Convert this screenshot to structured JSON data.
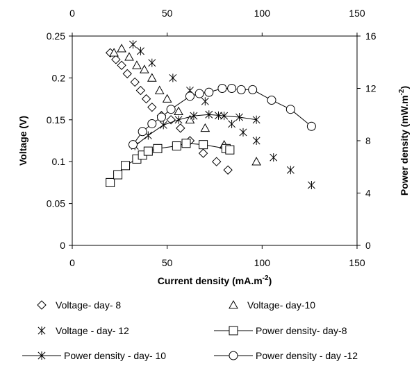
{
  "chart_data": {
    "type": "scatter",
    "xlabel": "Current density (mA.m-2)",
    "xlabel_parts": {
      "main": "Current density (mA.m",
      "sup": "-2",
      "close": ")"
    },
    "ylabel": "Voltage (V)",
    "y2label": "Power density (mW.m-2)",
    "y2label_parts": {
      "main": "Power density (mW.m",
      "sup": "-2",
      "close": ")"
    },
    "xlim": [
      0,
      150
    ],
    "ylim": [
      0,
      0.25
    ],
    "y2lim": [
      0,
      16
    ],
    "x_ticks": [
      "0",
      "50",
      "100",
      "150"
    ],
    "x_top_ticks": [
      "0",
      "50",
      "100",
      "150"
    ],
    "y_ticks": [
      "0",
      "0.05",
      "0.1",
      "0.15",
      "0.2",
      "0.25"
    ],
    "y2_ticks": [
      "0",
      "4",
      "8",
      "12",
      "16"
    ],
    "grid": false,
    "legend_position": "bottom",
    "series": [
      {
        "name": "Voltage- day- 8",
        "axis": "left",
        "marker": "diamond",
        "line": false,
        "x": [
          20,
          23,
          26,
          29,
          33,
          36,
          39,
          42,
          47,
          52,
          57,
          62,
          69,
          76,
          82
        ],
        "y": [
          0.23,
          0.222,
          0.215,
          0.205,
          0.195,
          0.185,
          0.175,
          0.165,
          0.155,
          0.15,
          0.14,
          0.125,
          0.11,
          0.1,
          0.09
        ]
      },
      {
        "name": "Voltage- day-10",
        "axis": "left",
        "marker": "triangle",
        "line": false,
        "x": [
          22,
          26,
          30,
          34,
          38,
          42,
          46,
          50,
          56,
          62,
          70,
          80,
          97
        ],
        "y": [
          0.23,
          0.235,
          0.225,
          0.215,
          0.21,
          0.2,
          0.185,
          0.175,
          0.16,
          0.15,
          0.14,
          0.12,
          0.1
        ]
      },
      {
        "name": "Voltage - day- 12",
        "axis": "left",
        "marker": "star",
        "line": false,
        "x": [
          32,
          36,
          42,
          53,
          62,
          70,
          77,
          84,
          90,
          97,
          106,
          115,
          126
        ],
        "y": [
          0.24,
          0.232,
          0.218,
          0.2,
          0.185,
          0.172,
          0.155,
          0.145,
          0.135,
          0.125,
          0.105,
          0.09,
          0.072
        ]
      },
      {
        "name": "Power density- day-8",
        "axis": "right",
        "marker": "square",
        "line": true,
        "x": [
          20,
          24,
          28,
          34,
          37,
          40,
          45,
          55,
          60,
          69,
          81,
          83
        ],
        "y": [
          4.8,
          5.4,
          6.1,
          6.6,
          6.9,
          7.2,
          7.4,
          7.6,
          7.8,
          7.7,
          7.4,
          7.3
        ]
      },
      {
        "name": "Power density - day- 10",
        "axis": "right",
        "marker": "star",
        "line": true,
        "x": [
          33,
          40,
          48,
          56,
          64,
          72,
          80,
          88,
          97
        ],
        "y": [
          7.6,
          8.4,
          9.2,
          9.6,
          9.9,
          10.0,
          9.9,
          9.8,
          9.6
        ]
      },
      {
        "name": "Power density - day -12",
        "axis": "right",
        "marker": "circle",
        "line": true,
        "x": [
          32,
          37,
          42,
          47,
          52,
          62,
          67,
          72,
          79,
          84,
          89,
          95,
          105,
          115,
          126
        ],
        "y": [
          7.7,
          8.7,
          9.3,
          9.8,
          10.4,
          11.4,
          11.6,
          11.7,
          12.0,
          12.0,
          11.9,
          11.9,
          11.1,
          10.4,
          9.1
        ]
      }
    ]
  }
}
